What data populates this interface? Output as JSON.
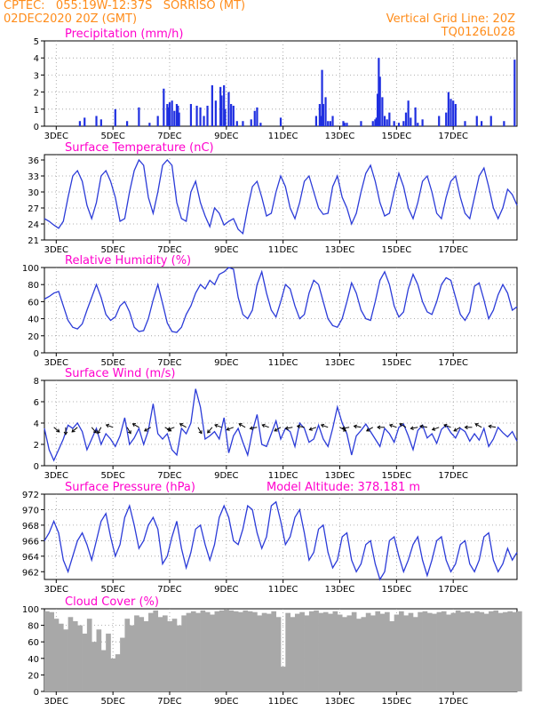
{
  "header": {
    "line1_left": "CPTEC:   055:19W-12:37S   SORRISO (MT)",
    "line2_left": "02DEC2020 20Z (GMT)",
    "line1_right": "Vertical Grid Line: 20Z",
    "line2_right": "TQ0126L028"
  },
  "colors": {
    "header": "#ff8c1a",
    "title": "#ff00cc",
    "line": "#2b3bd8",
    "bar": "#1f2fe0",
    "cloud": "#a8a8a8"
  },
  "x_ticks": [
    "3DEC",
    "5DEC",
    "7DEC",
    "9DEC",
    "11DEC",
    "13DEC",
    "15DEC",
    "17DEC"
  ],
  "chart_data": [
    {
      "type": "bar",
      "title": "Precipitation (mm/h)",
      "ylim": [
        0,
        5
      ],
      "yticks": [
        0,
        1,
        2,
        3,
        4,
        5
      ],
      "x_unit": "hours since 2DEC 20Z",
      "x": [
        30,
        34,
        44,
        48,
        60,
        70,
        80,
        89,
        96,
        101,
        104,
        105,
        106,
        108,
        110,
        112,
        113,
        114,
        124,
        129,
        132,
        135,
        138,
        142,
        145,
        149,
        150,
        152,
        153,
        156,
        158,
        160,
        163,
        168,
        175,
        178,
        180,
        183,
        200,
        230,
        233,
        234,
        235,
        236,
        238,
        240,
        242,
        244,
        253,
        254,
        256,
        268,
        278,
        280,
        281,
        282,
        283,
        284,
        286,
        288,
        290,
        292,
        296,
        300,
        304,
        306,
        308,
        310,
        314,
        316,
        320,
        334,
        340,
        342,
        344,
        346,
        348,
        356,
        366,
        370,
        378,
        389,
        398
      ],
      "values": [
        0.3,
        0.5,
        0.6,
        0.4,
        1.0,
        0.3,
        1.1,
        0.2,
        0.6,
        2.2,
        1.3,
        1.1,
        1.4,
        1.5,
        0.9,
        1.3,
        1.2,
        0.8,
        1.3,
        1.2,
        1.1,
        0.6,
        1.2,
        2.4,
        1.5,
        2.3,
        1.8,
        2.4,
        1.0,
        2.0,
        1.3,
        1.2,
        0.3,
        0.3,
        0.4,
        0.9,
        1.1,
        0.2,
        0.5,
        0.6,
        1.3,
        0.6,
        3.3,
        1.3,
        1.7,
        0.3,
        0.3,
        0.6,
        0.3,
        0.2,
        0.2,
        0.3,
        0.3,
        0.4,
        0.5,
        1.9,
        4.0,
        2.9,
        1.7,
        0.6,
        0.4,
        0.8,
        0.3,
        0.2,
        0.3,
        0.8,
        1.5,
        0.5,
        1.1,
        0.2,
        0.4,
        0.6,
        0.8,
        2.0,
        1.6,
        1.5,
        1.3,
        0.3,
        0.6,
        0.3,
        0.6,
        0.3,
        3.9
      ]
    },
    {
      "type": "line",
      "title": "Surface Temperature (nC)",
      "ylim": [
        21,
        37
      ],
      "yticks": [
        21,
        24,
        27,
        30,
        33,
        36
      ],
      "x_unit": "hours since 2DEC 20Z",
      "x": [
        0,
        4,
        8,
        12,
        16,
        20,
        24,
        28,
        32,
        36,
        40,
        44,
        48,
        52,
        56,
        60,
        64,
        68,
        72,
        76,
        80,
        84,
        88,
        92,
        96,
        100,
        104,
        108,
        112,
        116,
        120,
        124,
        128,
        132,
        136,
        140,
        144,
        148,
        152,
        156,
        160,
        164,
        168,
        172,
        176,
        180,
        184,
        188,
        192,
        196,
        200,
        204,
        208,
        212,
        216,
        220,
        224,
        228,
        232,
        236,
        240,
        244,
        248,
        252,
        256,
        260,
        264,
        268,
        272,
        276,
        280,
        284,
        288,
        292,
        296,
        300,
        304,
        308,
        312,
        316,
        320,
        324,
        328,
        332,
        336,
        340,
        344,
        348,
        352,
        356,
        360,
        364,
        368,
        372,
        376,
        380,
        384,
        388,
        392,
        396,
        400
      ],
      "values": [
        25,
        24.5,
        23.8,
        23.2,
        24.5,
        29,
        33,
        34,
        32,
        27.5,
        25,
        28,
        33,
        34,
        32,
        29,
        24.5,
        25,
        30,
        34,
        36,
        35,
        29,
        26,
        30,
        35,
        36,
        35,
        28,
        25,
        24.5,
        30,
        32,
        28,
        25.5,
        23.5,
        27,
        26,
        23.8,
        24.5,
        25,
        23,
        22.2,
        27,
        31,
        32,
        29,
        25.5,
        26,
        30,
        33,
        31,
        27,
        25,
        28,
        32,
        33,
        30,
        27,
        25.8,
        26,
        31,
        33,
        29,
        27,
        24,
        26,
        30,
        33.5,
        35,
        32,
        28,
        25.5,
        26,
        30,
        33.5,
        31,
        27,
        25,
        28,
        32,
        33,
        30,
        26,
        25,
        29,
        32,
        33,
        29,
        26,
        25,
        29,
        33,
        34.5,
        31,
        27,
        25,
        27,
        30.5,
        29.5,
        27.5
      ]
    },
    {
      "type": "line",
      "title": "Relative Humidity (%)",
      "ylim": [
        0,
        100
      ],
      "yticks": [
        0,
        20,
        40,
        60,
        80,
        100
      ],
      "x_unit": "hours since 2DEC 20Z",
      "x": [
        0,
        4,
        8,
        12,
        16,
        20,
        24,
        28,
        32,
        36,
        40,
        44,
        48,
        52,
        56,
        60,
        64,
        68,
        72,
        76,
        80,
        84,
        88,
        92,
        96,
        100,
        104,
        108,
        112,
        116,
        120,
        124,
        128,
        132,
        136,
        140,
        144,
        148,
        152,
        156,
        160,
        164,
        168,
        172,
        176,
        180,
        184,
        188,
        192,
        196,
        200,
        204,
        208,
        212,
        216,
        220,
        224,
        228,
        232,
        236,
        240,
        244,
        248,
        252,
        256,
        260,
        264,
        268,
        272,
        276,
        280,
        284,
        288,
        292,
        296,
        300,
        304,
        308,
        312,
        316,
        320,
        324,
        328,
        332,
        336,
        340,
        344,
        348,
        352,
        356,
        360,
        364,
        368,
        372,
        376,
        380,
        384,
        388,
        392,
        396,
        400
      ],
      "values": [
        63,
        66,
        70,
        72,
        55,
        38,
        30,
        28,
        34,
        50,
        65,
        80,
        65,
        45,
        38,
        42,
        55,
        60,
        48,
        30,
        25,
        26,
        40,
        62,
        80,
        58,
        35,
        25,
        24,
        30,
        45,
        55,
        70,
        80,
        75,
        85,
        80,
        92,
        95,
        100,
        98,
        65,
        45,
        40,
        50,
        80,
        95,
        70,
        50,
        42,
        60,
        80,
        75,
        55,
        40,
        45,
        70,
        85,
        80,
        60,
        40,
        32,
        30,
        40,
        60,
        82,
        70,
        50,
        40,
        38,
        60,
        85,
        95,
        80,
        55,
        42,
        48,
        75,
        92,
        80,
        60,
        48,
        45,
        60,
        80,
        88,
        85,
        65,
        45,
        38,
        48,
        78,
        82,
        62,
        40,
        50,
        68,
        80,
        70,
        50,
        54
      ]
    },
    {
      "type": "line",
      "title": "Surface Wind (m/s)",
      "ylim": [
        0,
        8
      ],
      "yticks": [
        0,
        2,
        4,
        6,
        8
      ],
      "x_unit": "hours since 2DEC 20Z",
      "x": [
        0,
        4,
        8,
        12,
        16,
        20,
        24,
        28,
        32,
        36,
        40,
        44,
        48,
        52,
        56,
        60,
        64,
        68,
        72,
        76,
        80,
        84,
        88,
        92,
        96,
        100,
        104,
        108,
        112,
        116,
        120,
        124,
        128,
        132,
        136,
        140,
        144,
        148,
        152,
        156,
        160,
        164,
        168,
        172,
        176,
        180,
        184,
        188,
        192,
        196,
        200,
        204,
        208,
        212,
        216,
        220,
        224,
        228,
        232,
        236,
        240,
        244,
        248,
        252,
        256,
        260,
        264,
        268,
        272,
        276,
        280,
        284,
        288,
        292,
        296,
        300,
        304,
        308,
        312,
        316,
        320,
        324,
        328,
        332,
        336,
        340,
        344,
        348,
        352,
        356,
        360,
        364,
        368,
        372,
        376,
        380,
        384,
        388,
        392,
        396,
        400
      ],
      "values": [
        3.5,
        1.5,
        0.5,
        1.5,
        2.5,
        3.8,
        3.5,
        4,
        3.2,
        1.5,
        2.5,
        3.5,
        2,
        3,
        2.5,
        1.8,
        2.8,
        4.5,
        2,
        2.6,
        3.5,
        2,
        3.3,
        5.8,
        3,
        2.5,
        3,
        1.5,
        1,
        3.5,
        3,
        4,
        7.2,
        5.5,
        2.5,
        2.8,
        3.2,
        2.5,
        4.5,
        1.2,
        2.8,
        3.5,
        2.2,
        1,
        3.2,
        4.8,
        2,
        1.8,
        3,
        4.2,
        2.5,
        3.5,
        3.2,
        1.8,
        4,
        3.5,
        2.2,
        2.5,
        3.8,
        2.5,
        1.8,
        3.5,
        5.5,
        4,
        3,
        1,
        2.8,
        3.3,
        3.9,
        3.2,
        2.5,
        1.8,
        3.5,
        3,
        2.2,
        3.6,
        3.9,
        2.8,
        1.5,
        3.3,
        3.8,
        2.6,
        3,
        2.1,
        3.4,
        3.8,
        3.1,
        2.6,
        3.5,
        3.2,
        2.3,
        3,
        2.4,
        3.5,
        1.8,
        2.5,
        3.6,
        3.1,
        2.7,
        3.2,
        2.3
      ],
      "arrows_x": [
        8,
        18,
        28,
        40,
        48,
        58,
        70,
        80,
        90,
        102,
        110,
        120,
        130,
        142,
        150,
        160,
        170,
        180,
        190,
        200,
        210,
        220,
        230,
        240,
        250,
        258,
        268,
        278,
        288,
        298,
        306,
        316,
        324,
        334,
        344,
        352,
        362,
        370,
        382
      ],
      "arrows_angle": [
        40,
        90,
        140,
        50,
        120,
        200,
        60,
        210,
        150,
        30,
        160,
        210,
        60,
        130,
        200,
        160,
        210,
        170,
        200,
        150,
        170,
        190,
        160,
        200,
        30,
        170,
        190,
        150,
        180,
        200,
        210,
        170,
        190,
        160,
        200,
        150,
        180,
        210,
        190
      ]
    },
    {
      "type": "line",
      "title": "Surface Pressure (hPa)",
      "annotation": "Model Altitude: 378.181 m",
      "ylim": [
        961,
        972
      ],
      "yticks": [
        962,
        964,
        966,
        968,
        970,
        972
      ],
      "x_unit": "hours since 2DEC 20Z",
      "x": [
        0,
        4,
        8,
        12,
        16,
        20,
        24,
        28,
        32,
        36,
        40,
        44,
        48,
        52,
        56,
        60,
        64,
        68,
        72,
        76,
        80,
        84,
        88,
        92,
        96,
        100,
        104,
        108,
        112,
        116,
        120,
        124,
        128,
        132,
        136,
        140,
        144,
        148,
        152,
        156,
        160,
        164,
        168,
        172,
        176,
        180,
        184,
        188,
        192,
        196,
        200,
        204,
        208,
        212,
        216,
        220,
        224,
        228,
        232,
        236,
        240,
        244,
        248,
        252,
        256,
        260,
        264,
        268,
        272,
        276,
        280,
        284,
        288,
        292,
        296,
        300,
        304,
        308,
        312,
        316,
        320,
        324,
        328,
        332,
        336,
        340,
        344,
        348,
        352,
        356,
        360,
        364,
        368,
        372,
        376,
        380,
        384,
        388,
        392,
        396,
        400
      ],
      "values": [
        966,
        967,
        968.5,
        967,
        963.5,
        962,
        964,
        966,
        967,
        965.5,
        963.5,
        966,
        968.5,
        969.5,
        966.5,
        964,
        965.5,
        969,
        970.5,
        968,
        965,
        966,
        968,
        969,
        967.5,
        963,
        964,
        966.5,
        968.5,
        965,
        962.5,
        964.5,
        967.5,
        968,
        965.5,
        963.5,
        965.5,
        969,
        970.5,
        969,
        966,
        965.5,
        967.5,
        970.5,
        970,
        967,
        965,
        966.5,
        970.5,
        971,
        968.5,
        965.5,
        966.5,
        969,
        970,
        967,
        963.5,
        964.5,
        967.5,
        968,
        964.5,
        962.5,
        963.5,
        966.5,
        967,
        963.5,
        962,
        963,
        965.5,
        966,
        963,
        961,
        962,
        966,
        966.5,
        964,
        962,
        963.5,
        965.5,
        966.5,
        963.5,
        961.5,
        963.5,
        966,
        966.5,
        963.5,
        962,
        963,
        965.5,
        966,
        963,
        962,
        963.5,
        966.5,
        967,
        963.5,
        962,
        963,
        965,
        963.5,
        964.5
      ]
    },
    {
      "type": "bar",
      "title": "Cloud Cover (%)",
      "ylim": [
        0,
        100
      ],
      "yticks": [
        0,
        20,
        40,
        60,
        80,
        100
      ],
      "x_unit": "hours since 2DEC 20Z",
      "x": [
        0,
        4,
        8,
        12,
        16,
        20,
        24,
        28,
        32,
        36,
        40,
        44,
        48,
        52,
        56,
        60,
        64,
        68,
        72,
        76,
        80,
        84,
        88,
        92,
        96,
        100,
        104,
        108,
        112,
        116,
        120,
        124,
        128,
        132,
        136,
        140,
        144,
        148,
        152,
        156,
        160,
        164,
        168,
        172,
        176,
        180,
        184,
        188,
        192,
        196,
        200,
        204,
        208,
        212,
        216,
        220,
        224,
        228,
        232,
        236,
        240,
        244,
        248,
        252,
        256,
        260,
        264,
        268,
        272,
        276,
        280,
        284,
        288,
        292,
        296,
        300,
        304,
        308,
        312,
        316,
        320,
        324,
        328,
        332,
        336,
        340,
        344,
        348,
        352,
        356,
        360,
        364,
        368,
        372,
        376,
        380,
        384,
        388,
        392,
        396,
        400
      ],
      "values": [
        97,
        96,
        88,
        82,
        75,
        90,
        85,
        80,
        70,
        88,
        60,
        75,
        50,
        70,
        40,
        45,
        65,
        88,
        80,
        92,
        90,
        85,
        95,
        98,
        90,
        92,
        85,
        88,
        80,
        92,
        95,
        97,
        95,
        98,
        96,
        93,
        97,
        98,
        99,
        98,
        97,
        96,
        98,
        97,
        96,
        92,
        95,
        94,
        97,
        90,
        30,
        95,
        90,
        94,
        96,
        92,
        97,
        98,
        95,
        96,
        94,
        97,
        93,
        90,
        92,
        96,
        88,
        90,
        95,
        92,
        97,
        94,
        96,
        85,
        93,
        97,
        92,
        95,
        90,
        96,
        97,
        95,
        94,
        96,
        97,
        93,
        95,
        98,
        96,
        97,
        95,
        97,
        96,
        94,
        97,
        98,
        95,
        96,
        97,
        96,
        97
      ]
    }
  ]
}
